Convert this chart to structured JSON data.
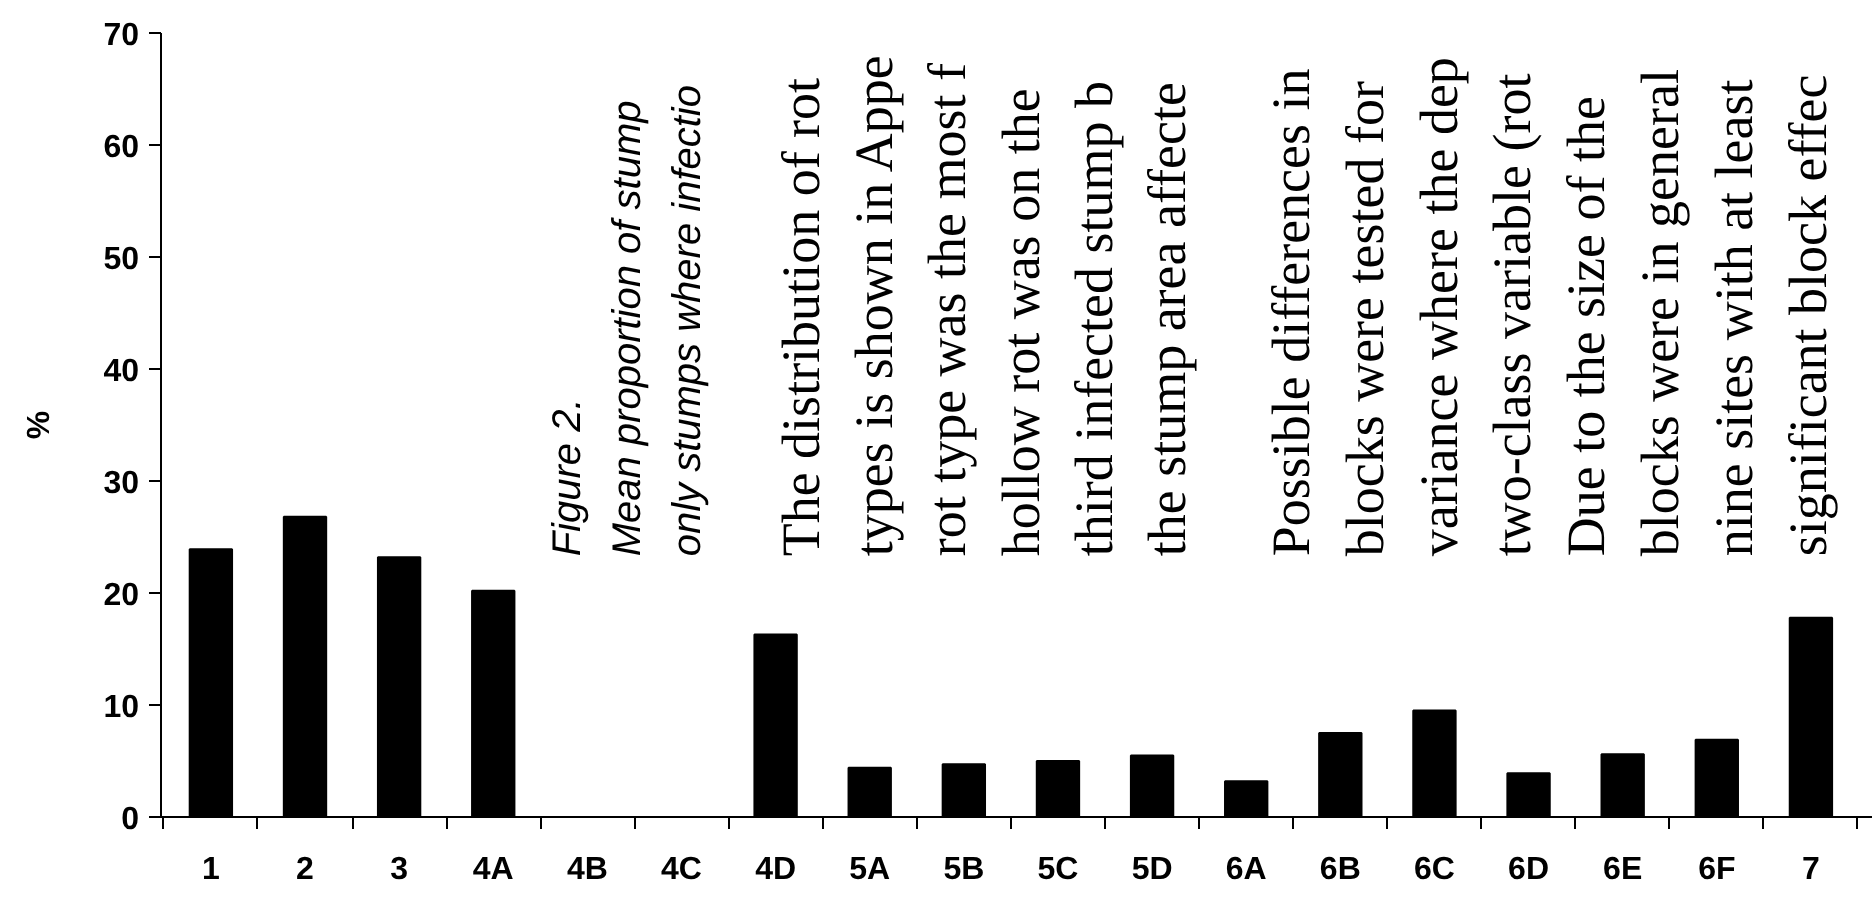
{
  "chart_data": {
    "type": "bar",
    "ylabel": "%",
    "categories": [
      "1",
      "2",
      "3",
      "4A",
      "4B",
      "4C",
      "4D",
      "5A",
      "5B",
      "5C",
      "5D",
      "6A",
      "6B",
      "6C",
      "6D",
      "6E",
      "6F",
      "7"
    ],
    "values": [
      23.9,
      26.8,
      23.2,
      20.2,
      0,
      0,
      16.3,
      4.4,
      4.7,
      5.0,
      5.5,
      3.2,
      7.5,
      9.5,
      3.9,
      5.6,
      6.9,
      17.8
    ],
    "color": "#000000",
    "ylim": [
      0,
      70
    ],
    "yticks": [
      0,
      10,
      20,
      30,
      40,
      50,
      60,
      70
    ],
    "grid": false,
    "annotations": [
      "Figure 2.\nMean proportion of stump\nonly stumps where infectio",
      "The distribution of rot\ntypes is shown in Appe\nrot type was the most f\nhollow rot was on the\nthird infected stump b\nthe stump area affecte",
      "Possible differences in\nblocks were tested for\nvariance where the dep\ntwo-class variable (rot\nDue to the size of the\nblocks were in general\nnine sites with at least\nsignificant block effec"
    ]
  }
}
